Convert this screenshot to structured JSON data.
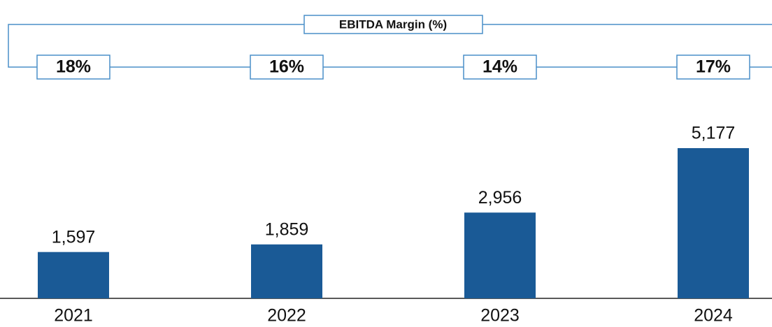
{
  "chart_data": {
    "type": "bar",
    "categories": [
      "2021",
      "2022",
      "2023",
      "2024"
    ],
    "values": [
      1597,
      1859,
      2956,
      5177
    ],
    "value_labels": [
      "1,597",
      "1,859",
      "2,956",
      "5,177"
    ],
    "color": "#1a5a96",
    "margin": {
      "title": "EBITDA Margin (%)",
      "values": [
        18,
        16,
        14,
        17
      ],
      "value_labels": [
        "18%",
        "16%",
        "14%",
        "17%"
      ],
      "color": "#4a8fc9"
    }
  }
}
